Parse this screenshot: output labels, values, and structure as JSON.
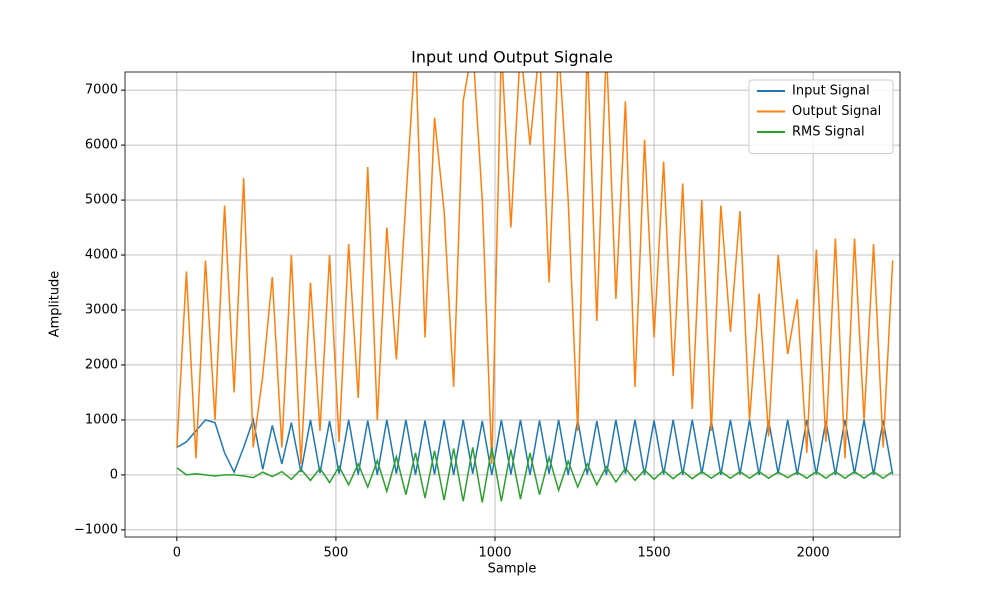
{
  "chart_data": {
    "type": "line",
    "title": "Input und Output Signale",
    "x_label": "Sample",
    "y_label": "Amplitude",
    "x": [
      0,
      30,
      60,
      90,
      120,
      150,
      180,
      210,
      240,
      270,
      300,
      330,
      360,
      390,
      420,
      450,
      480,
      510,
      540,
      570,
      600,
      630,
      660,
      690,
      720,
      750,
      780,
      810,
      840,
      870,
      900,
      930,
      960,
      990,
      1020,
      1050,
      1080,
      1110,
      1140,
      1170,
      1200,
      1230,
      1260,
      1290,
      1320,
      1350,
      1380,
      1410,
      1440,
      1470,
      1500,
      1530,
      1560,
      1590,
      1620,
      1650,
      1680,
      1710,
      1740,
      1770,
      1800,
      1830,
      1860,
      1890,
      1920,
      1950,
      1980,
      2010,
      2040,
      2070,
      2100,
      2130,
      2160,
      2190,
      2220,
      2250
    ],
    "series": [
      {
        "name": "Input Signal",
        "color": "#1f77b4",
        "values": [
          500,
          600,
          800,
          1000,
          950,
          400,
          50,
          500,
          1000,
          100,
          900,
          200,
          950,
          50,
          1000,
          30,
          980,
          20,
          1000,
          10,
          990,
          0,
          1000,
          20,
          1000,
          0,
          990,
          10,
          1000,
          0,
          1000,
          20,
          980,
          0,
          1000,
          10,
          1000,
          0,
          990,
          20,
          1000,
          0,
          1000,
          10,
          980,
          0,
          1000,
          20,
          1000,
          0,
          990,
          10,
          1000,
          0,
          1000,
          20,
          980,
          0,
          1000,
          10,
          1000,
          0,
          990,
          20,
          1000,
          0,
          1000,
          10,
          980,
          0,
          1000,
          20,
          1000,
          0,
          990,
          10
        ]
      },
      {
        "name": "Output Signal",
        "color": "#ff7f0e",
        "values": [
          500,
          3700,
          300,
          3900,
          1000,
          4900,
          1500,
          5400,
          500,
          1800,
          3600,
          500,
          4000,
          200,
          3500,
          800,
          4000,
          600,
          4200,
          1400,
          5600,
          1000,
          4500,
          2100,
          5000,
          7800,
          2500,
          6500,
          4800,
          1600,
          6800,
          7800,
          5000,
          200,
          7800,
          4500,
          7800,
          6000,
          7800,
          3500,
          7800,
          5000,
          800,
          7800,
          2800,
          7800,
          3200,
          6800,
          1600,
          6100,
          2500,
          5700,
          1800,
          5300,
          1200,
          5000,
          800,
          4900,
          2600,
          4800,
          1000,
          3300,
          700,
          4000,
          2200,
          3200,
          400,
          4100,
          600,
          4300,
          300,
          4300,
          1000,
          4200,
          500,
          3900
        ]
      },
      {
        "name": "RMS Signal",
        "color": "#2ca02c",
        "values": [
          130,
          0,
          20,
          0,
          -20,
          0,
          0,
          -20,
          -50,
          50,
          -30,
          60,
          -80,
          100,
          -100,
          120,
          -140,
          150,
          -180,
          200,
          -220,
          260,
          -300,
          330,
          -360,
          400,
          -420,
          440,
          -460,
          480,
          -480,
          500,
          -500,
          500,
          -480,
          460,
          -440,
          400,
          -360,
          320,
          -280,
          250,
          -220,
          200,
          -180,
          150,
          -130,
          120,
          -100,
          90,
          -80,
          80,
          -70,
          70,
          -70,
          60,
          -60,
          60,
          -60,
          60,
          -60,
          60,
          -60,
          50,
          -50,
          50,
          -60,
          60,
          -60,
          60,
          -60,
          60,
          -60,
          60,
          -60,
          60
        ]
      }
    ],
    "xlim": [
      -163,
      2273
    ],
    "ylim": [
      -1130,
      7330
    ],
    "xticks": [
      0,
      500,
      1000,
      1500,
      2000
    ],
    "yticks": [
      {
        "value": -1000,
        "label": "−1000"
      },
      0,
      1000,
      2000,
      3000,
      4000,
      5000,
      6000,
      7000
    ],
    "grid": true,
    "legend": "upper right"
  }
}
